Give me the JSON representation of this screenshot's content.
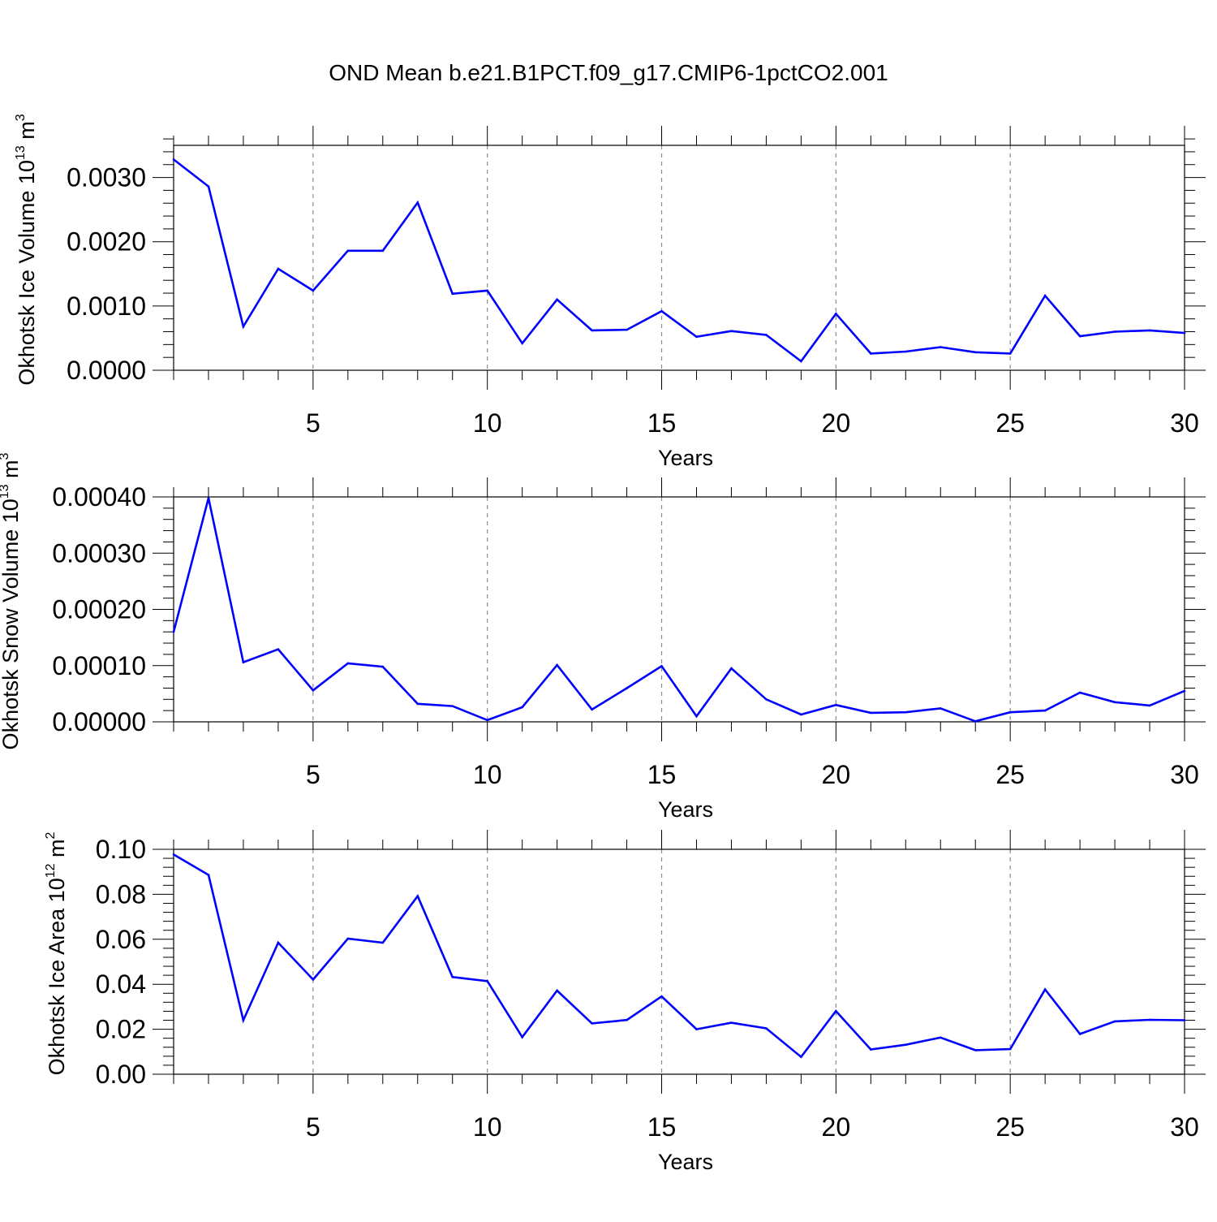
{
  "title": "OND Mean b.e21.B1PCT.f09_g17.CMIP6-1pctCO2.001",
  "colors": {
    "series": "#0000ff",
    "axes": "#000000",
    "grid": "#8c8c8c"
  },
  "chart_data": [
    {
      "type": "line",
      "ylabel": {
        "text": "Okhotsk Ice Volume 10",
        "exp": "13",
        "unit": " m",
        "unit_exp": "3"
      },
      "xlabel": "Years",
      "xlim": [
        1,
        30
      ],
      "ylim": [
        0,
        0.0035
      ],
      "xticks": [
        5,
        10,
        15,
        20,
        25,
        30
      ],
      "xtick_labels": [
        "5",
        "10",
        "15",
        "20",
        "25",
        "30"
      ],
      "yticks": [
        0,
        0.001,
        0.002,
        0.003
      ],
      "ytick_labels": [
        "0.0000",
        "0.0010",
        "0.0020",
        "0.0030"
      ],
      "grid": "vertical-dashed",
      "x": [
        1,
        2,
        3,
        4,
        5,
        6,
        7,
        8,
        9,
        10,
        11,
        12,
        13,
        14,
        15,
        16,
        17,
        18,
        19,
        20,
        21,
        22,
        23,
        24,
        25,
        26,
        27,
        28,
        29,
        30
      ],
      "y": [
        0.00328,
        0.00286,
        0.00068,
        0.00158,
        0.00124,
        0.00186,
        0.00186,
        0.00261,
        0.00119,
        0.00124,
        0.00042,
        0.0011,
        0.00062,
        0.00063,
        0.00092,
        0.00052,
        0.00061,
        0.00055,
        0.00014,
        0.00088,
        0.00026,
        0.00029,
        0.00036,
        0.00028,
        0.00026,
        0.00116,
        0.00053,
        0.0006,
        0.00062,
        0.00058
      ]
    },
    {
      "type": "line",
      "ylabel": {
        "text": "Okhotsk Snow Volume 10",
        "exp": "13",
        "unit": " m",
        "unit_exp": "3"
      },
      "xlabel": "Years",
      "xlim": [
        1,
        30
      ],
      "ylim": [
        0,
        0.0004
      ],
      "xticks": [
        5,
        10,
        15,
        20,
        25,
        30
      ],
      "xtick_labels": [
        "5",
        "10",
        "15",
        "20",
        "25",
        "30"
      ],
      "yticks": [
        0,
        0.0001,
        0.0002,
        0.0003,
        0.0004
      ],
      "ytick_labels": [
        "0.00000",
        "0.00010",
        "0.00020",
        "0.00030",
        "0.00040"
      ],
      "grid": "vertical-dashed",
      "x": [
        1,
        2,
        3,
        4,
        5,
        6,
        7,
        8,
        9,
        10,
        11,
        12,
        13,
        14,
        15,
        16,
        17,
        18,
        19,
        20,
        21,
        22,
        23,
        24,
        25,
        26,
        27,
        28,
        29,
        30
      ],
      "y": [
        0.00016,
        0.000398,
        0.000106,
        0.000129,
        5.6e-05,
        0.000104,
        9.8e-05,
        3.2e-05,
        2.8e-05,
        3e-06,
        2.6e-05,
        0.000101,
        2.2e-05,
        6e-05,
        9.9e-05,
        1e-05,
        9.5e-05,
        4e-05,
        1.3e-05,
        3e-05,
        1.6e-05,
        1.7e-05,
        2.4e-05,
        1e-06,
        1.7e-05,
        2e-05,
        5.2e-05,
        3.5e-05,
        2.9e-05,
        5.5e-05
      ]
    },
    {
      "type": "line",
      "ylabel": {
        "text": "Okhotsk Ice Area 10",
        "exp": "12",
        "unit": " m",
        "unit_exp": "2"
      },
      "xlabel": "Years",
      "xlim": [
        1,
        30
      ],
      "ylim": [
        0,
        0.1
      ],
      "xticks": [
        5,
        10,
        15,
        20,
        25,
        30
      ],
      "xtick_labels": [
        "5",
        "10",
        "15",
        "20",
        "25",
        "30"
      ],
      "yticks": [
        0,
        0.02,
        0.04,
        0.06,
        0.08,
        0.1
      ],
      "ytick_labels": [
        "0.00",
        "0.02",
        "0.04",
        "0.06",
        "0.08",
        "0.10"
      ],
      "grid": "vertical-dashed",
      "x": [
        1,
        2,
        3,
        4,
        5,
        6,
        7,
        8,
        9,
        10,
        11,
        12,
        13,
        14,
        15,
        16,
        17,
        18,
        19,
        20,
        21,
        22,
        23,
        24,
        25,
        26,
        27,
        28,
        29,
        30
      ],
      "y": [
        0.0977,
        0.0886,
        0.024,
        0.0585,
        0.0421,
        0.0603,
        0.0585,
        0.0792,
        0.0432,
        0.0414,
        0.0165,
        0.0372,
        0.0226,
        0.0241,
        0.0346,
        0.02,
        0.0229,
        0.0204,
        0.0077,
        0.0281,
        0.011,
        0.0131,
        0.0163,
        0.0107,
        0.0112,
        0.0377,
        0.0179,
        0.0235,
        0.0242,
        0.024
      ]
    }
  ]
}
